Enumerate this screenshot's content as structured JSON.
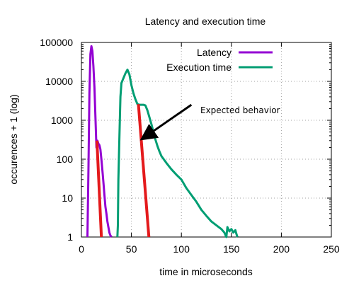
{
  "chart_data": {
    "type": "line",
    "title": "Latency and execution time",
    "xlabel": "time in microseconds",
    "ylabel": "occurences + 1 (log)",
    "xlim": [
      0,
      250
    ],
    "ylim": [
      1,
      100000
    ],
    "y_scale": "log",
    "grid": true,
    "grid_style": "dotted",
    "legend_position": "top-right",
    "x_ticks": [
      "0",
      "50",
      "100",
      "150",
      "200",
      "250"
    ],
    "y_ticks": [
      "1",
      "10",
      "100",
      "1000",
      "10000",
      "100000"
    ],
    "series": [
      {
        "name": "Latency",
        "color": "#9400d3",
        "x": [
          6,
          6.3,
          7,
          8,
          9,
          10,
          11,
          12,
          13,
          14,
          15,
          16,
          17,
          18,
          19,
          20,
          21,
          22,
          23,
          24,
          25,
          26,
          27,
          28,
          29,
          30
        ],
        "y": [
          1,
          3,
          50,
          5000,
          50000,
          80000,
          60000,
          25000,
          7000,
          1200,
          200,
          300,
          250,
          230,
          180,
          100,
          50,
          25,
          12,
          6,
          4,
          2.5,
          1.8,
          1.3,
          1.1,
          1
        ]
      },
      {
        "name": "Execution time",
        "color": "#009e73",
        "x": [
          36,
          36.5,
          37,
          38,
          39,
          40,
          42,
          44,
          46,
          48,
          50,
          52,
          54,
          56,
          58,
          60,
          62,
          64,
          66,
          68,
          70,
          72,
          74,
          76,
          78,
          80,
          85,
          90,
          95,
          100,
          105,
          110,
          115,
          120,
          125,
          130,
          135,
          140,
          143,
          145,
          146,
          148,
          150,
          152,
          154,
          155,
          156
        ],
        "y": [
          1,
          2,
          30,
          400,
          4000,
          9000,
          12000,
          16000,
          20000,
          15000,
          8000,
          5000,
          3500,
          2600,
          2500,
          2500,
          2500,
          2400,
          1800,
          1200,
          800,
          500,
          320,
          220,
          160,
          120,
          80,
          55,
          40,
          30,
          18,
          12,
          8,
          5,
          3.5,
          2.5,
          2,
          1.6,
          1.3,
          1,
          1.8,
          1.4,
          1.6,
          1.3,
          1.5,
          1.2,
          1
        ]
      },
      {
        "name": "",
        "color": "#e41a1c",
        "segments": [
          {
            "x": [
              15.5,
              20
            ],
            "y": [
              300,
              1
            ]
          },
          {
            "x": [
              57,
              67.5
            ],
            "y": [
              2600,
              1
            ]
          }
        ]
      }
    ],
    "annotations": [
      {
        "text": "Expected behavior",
        "arrow_from": [
          110,
          2500
        ],
        "arrow_to": [
          62,
          350
        ]
      }
    ]
  }
}
